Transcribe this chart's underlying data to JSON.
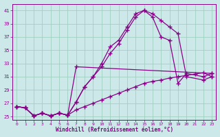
{
  "xlabel": "Windchill (Refroidissement éolien,°C)",
  "bg_color": "#cce8e8",
  "line_color": "#880088",
  "xlim": [
    -0.5,
    23.5
  ],
  "ylim": [
    24.5,
    42
  ],
  "xticks": [
    0,
    1,
    2,
    3,
    4,
    5,
    6,
    7,
    8,
    9,
    10,
    11,
    12,
    13,
    14,
    15,
    16,
    17,
    18,
    19,
    20,
    21,
    22,
    23
  ],
  "yticks": [
    25,
    27,
    29,
    31,
    33,
    35,
    37,
    39,
    41
  ],
  "series": [
    {
      "x": [
        0,
        1,
        2,
        3,
        4,
        5,
        6,
        7,
        8,
        9,
        10,
        11,
        12,
        13,
        14,
        15,
        16,
        17,
        18,
        19,
        20,
        22,
        23
      ],
      "y": [
        26.5,
        26.3,
        25.1,
        25.5,
        25.1,
        25.5,
        25.2,
        27.2,
        29.5,
        31.0,
        33.0,
        35.5,
        36.5,
        38.5,
        40.5,
        41.0,
        40.5,
        39.5,
        38.5,
        37.5,
        31.0,
        30.5,
        31.0
      ]
    },
    {
      "x": [
        0,
        1,
        2,
        3,
        4,
        5,
        6,
        7,
        8,
        9,
        10,
        11,
        12,
        13,
        14,
        15,
        16,
        17,
        18,
        19,
        20,
        22,
        23
      ],
      "y": [
        26.5,
        26.3,
        25.1,
        25.5,
        25.1,
        25.5,
        25.2,
        27.2,
        29.5,
        31.0,
        32.5,
        34.5,
        36.0,
        38.0,
        40.0,
        41.0,
        40.0,
        37.0,
        36.5,
        30.0,
        31.5,
        31.0,
        31.5
      ]
    },
    {
      "x": [
        0,
        1,
        2,
        3,
        4,
        5,
        6,
        7,
        23
      ],
      "y": [
        26.5,
        26.3,
        25.1,
        25.5,
        25.1,
        25.5,
        25.2,
        32.5,
        31.5
      ]
    },
    {
      "x": [
        0,
        1,
        2,
        3,
        4,
        5,
        6,
        7,
        8,
        9,
        10,
        11,
        12,
        13,
        14,
        15,
        16,
        17,
        18,
        19,
        20,
        21,
        22,
        23
      ],
      "y": [
        26.5,
        26.3,
        25.1,
        25.5,
        25.1,
        25.5,
        25.2,
        26.0,
        26.5,
        27.0,
        27.5,
        28.0,
        28.5,
        29.0,
        29.5,
        30.0,
        30.3,
        30.5,
        30.8,
        31.0,
        31.2,
        31.4,
        31.6,
        31.0
      ]
    }
  ]
}
